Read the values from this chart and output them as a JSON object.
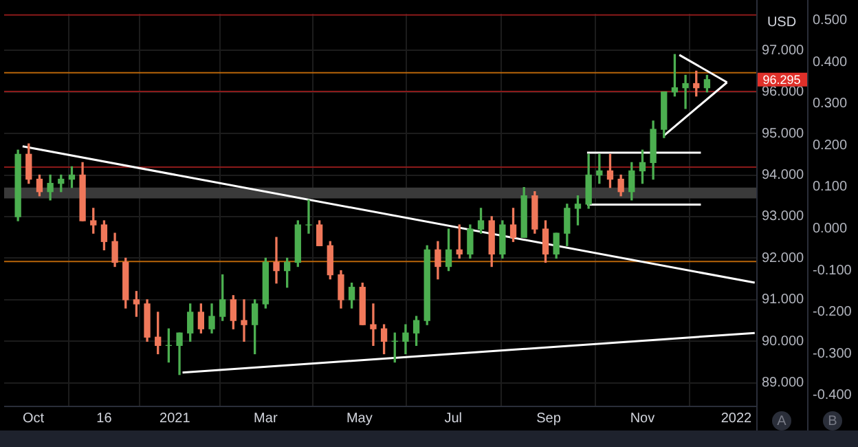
{
  "chart_data": {
    "type": "candlestick",
    "ylabel": "USD",
    "x": [
      "2020-09-21",
      "2020-09-28",
      "2020-10-05",
      "2020-10-12",
      "2020-10-19",
      "2020-10-26",
      "2020-11-02",
      "2020-11-09",
      "2020-11-16",
      "2020-11-23",
      "2020-11-30",
      "2020-12-07",
      "2020-12-14",
      "2020-12-21",
      "2020-12-28",
      "2021-01-04",
      "2021-01-11",
      "2021-01-18",
      "2021-01-25",
      "2021-02-01",
      "2021-02-08",
      "2021-02-15",
      "2021-02-22",
      "2021-03-01",
      "2021-03-08",
      "2021-03-15",
      "2021-03-22",
      "2021-03-29",
      "2021-04-05",
      "2021-04-12",
      "2021-04-19",
      "2021-04-26",
      "2021-05-03",
      "2021-05-10",
      "2021-05-17",
      "2021-05-24",
      "2021-05-31",
      "2021-06-07",
      "2021-06-14",
      "2021-06-21",
      "2021-06-28",
      "2021-07-05",
      "2021-07-12",
      "2021-07-19",
      "2021-07-26",
      "2021-08-02",
      "2021-08-09",
      "2021-08-16",
      "2021-08-23",
      "2021-08-30",
      "2021-09-06",
      "2021-09-13",
      "2021-09-20",
      "2021-09-27",
      "2021-10-04",
      "2021-10-11",
      "2021-10-18",
      "2021-10-25",
      "2021-11-01",
      "2021-11-08",
      "2021-11-15",
      "2021-11-22",
      "2021-11-29",
      "2021-12-06",
      "2021-12-13"
    ],
    "ohlc": [
      [
        93.0,
        94.6,
        92.9,
        94.5
      ],
      [
        94.5,
        94.75,
        93.8,
        93.9
      ],
      [
        93.9,
        94.0,
        93.5,
        93.6
      ],
      [
        93.6,
        94.0,
        93.4,
        93.8
      ],
      [
        93.8,
        94.0,
        93.6,
        93.9
      ],
      [
        93.9,
        94.2,
        93.7,
        94.0
      ],
      [
        94.0,
        94.3,
        92.9,
        92.9
      ],
      [
        92.9,
        93.2,
        92.6,
        92.8
      ],
      [
        92.8,
        92.9,
        92.2,
        92.4
      ],
      [
        92.4,
        92.6,
        91.8,
        91.9
      ],
      [
        91.9,
        92.0,
        90.8,
        91.0
      ],
      [
        91.0,
        91.2,
        90.6,
        90.9
      ],
      [
        90.9,
        91.0,
        90.0,
        90.1
      ],
      [
        90.1,
        90.7,
        89.7,
        89.9
      ],
      [
        89.9,
        90.3,
        89.5,
        89.9
      ],
      [
        89.9,
        90.2,
        89.2,
        90.2
      ],
      [
        90.2,
        90.9,
        90.0,
        90.7
      ],
      [
        90.7,
        90.9,
        90.2,
        90.3
      ],
      [
        90.3,
        90.9,
        90.2,
        90.6
      ],
      [
        90.6,
        91.6,
        90.5,
        91.0
      ],
      [
        91.0,
        91.1,
        90.3,
        90.5
      ],
      [
        90.5,
        91.0,
        90.0,
        90.4
      ],
      [
        90.4,
        91.0,
        89.7,
        90.9
      ],
      [
        90.9,
        92.0,
        90.8,
        91.9
      ],
      [
        91.9,
        92.5,
        91.4,
        91.7
      ],
      [
        91.7,
        92.0,
        91.3,
        91.9
      ],
      [
        91.9,
        92.9,
        91.8,
        92.8
      ],
      [
        92.8,
        93.4,
        92.6,
        92.8
      ],
      [
        92.8,
        92.9,
        92.3,
        92.3
      ],
      [
        92.3,
        92.4,
        91.5,
        91.6
      ],
      [
        91.6,
        91.7,
        90.8,
        91.0
      ],
      [
        91.0,
        91.4,
        90.8,
        91.3
      ],
      [
        91.3,
        91.4,
        90.4,
        90.4
      ],
      [
        90.4,
        90.9,
        89.9,
        90.3
      ],
      [
        90.3,
        90.4,
        89.7,
        90.0
      ],
      [
        90.0,
        90.2,
        89.5,
        90.0
      ],
      [
        90.0,
        90.4,
        89.7,
        90.2
      ],
      [
        90.2,
        90.6,
        89.9,
        90.5
      ],
      [
        90.5,
        92.3,
        90.4,
        92.2
      ],
      [
        92.2,
        92.4,
        91.5,
        91.8
      ],
      [
        91.8,
        92.7,
        91.7,
        92.2
      ],
      [
        92.2,
        92.8,
        92.0,
        92.1
      ],
      [
        92.1,
        92.8,
        92.0,
        92.7
      ],
      [
        92.7,
        93.2,
        92.6,
        92.9
      ],
      [
        92.9,
        93.0,
        91.8,
        92.1
      ],
      [
        92.1,
        92.9,
        92.0,
        92.8
      ],
      [
        92.8,
        93.2,
        92.4,
        92.5
      ],
      [
        92.5,
        93.7,
        92.5,
        93.5
      ],
      [
        93.5,
        93.6,
        92.6,
        92.7
      ],
      [
        92.7,
        92.9,
        91.9,
        92.1
      ],
      [
        92.1,
        92.6,
        92.0,
        92.6
      ],
      [
        92.6,
        93.3,
        92.3,
        93.2
      ],
      [
        93.2,
        93.5,
        92.8,
        93.3
      ],
      [
        93.3,
        94.5,
        93.2,
        94.0
      ],
      [
        94.0,
        94.5,
        93.8,
        94.1
      ],
      [
        94.1,
        94.5,
        93.7,
        93.9
      ],
      [
        93.9,
        94.0,
        93.5,
        93.6
      ],
      [
        93.6,
        94.3,
        93.4,
        94.1
      ],
      [
        94.1,
        94.6,
        93.8,
        94.3
      ],
      [
        94.3,
        95.3,
        93.9,
        95.1
      ],
      [
        95.1,
        96.0,
        94.9,
        96.0
      ],
      [
        96.0,
        96.9,
        95.9,
        96.1
      ],
      [
        96.1,
        96.4,
        95.6,
        96.2
      ],
      [
        96.2,
        96.5,
        95.9,
        96.1
      ],
      [
        96.1,
        96.4,
        96.0,
        96.295
      ]
    ],
    "series": [
      {
        "type": "line",
        "color": "#ffffff",
        "x": [
          "2020-09-24",
          "2022-01-13"
        ],
        "values": [
          94.69,
          91.41
        ]
      },
      {
        "type": "line",
        "color": "#ffffff",
        "x": [
          "2021-01-06",
          "2022-01-13"
        ],
        "values": [
          89.25,
          90.2
        ]
      },
      {
        "type": "line",
        "color": "#ffffff",
        "x": [
          "2021-09-26",
          "2021-12-09"
        ],
        "values": [
          94.54,
          94.54
        ]
      },
      {
        "type": "line",
        "color": "#ffffff",
        "x": [
          "2021-09-26",
          "2021-12-09"
        ],
        "values": [
          93.29,
          93.29
        ]
      },
      {
        "type": "line",
        "color": "#ffffff",
        "x": [
          "2021-11-25",
          "2021-12-26"
        ],
        "values": [
          96.89,
          96.23
        ]
      },
      {
        "type": "line",
        "color": "#ffffff",
        "x": [
          "2021-11-15",
          "2021-12-26"
        ],
        "values": [
          94.95,
          96.23
        ]
      }
    ],
    "ref_lines": [
      {
        "axis": "y",
        "value": 97.85,
        "color": "#8b1a1a"
      },
      {
        "axis": "y",
        "value": 96.46,
        "color": "#b8650a"
      },
      {
        "axis": "y",
        "value": 96.01,
        "color": "#8b1a1a"
      },
      {
        "axis": "y",
        "value": 94.19,
        "color": "#8b1a1a"
      },
      {
        "axis": "y",
        "value": 91.92,
        "color": "#b8650a"
      }
    ],
    "bands": [
      {
        "axis": "y",
        "from": 93.44,
        "to": 93.7,
        "color": "#3a3a3a"
      }
    ],
    "annotations": [
      "96.295",
      "A",
      "B"
    ],
    "xlim": [
      "2020-09-12",
      "2022-01-14"
    ],
    "xticks": [
      {
        "value": "2020-10-01",
        "label": "Oct"
      },
      {
        "value": "2020-11-16",
        "label": "16"
      },
      {
        "value": "2021-01-01",
        "label": "2021"
      },
      {
        "value": "2021-03-01",
        "label": "Mar"
      },
      {
        "value": "2021-05-01",
        "label": "May"
      },
      {
        "value": "2021-07-01",
        "label": "Jul"
      },
      {
        "value": "2021-09-01",
        "label": "Sep"
      },
      {
        "value": "2021-11-01",
        "label": "Nov"
      },
      {
        "value": "2022-01-01",
        "label": "2022"
      }
    ],
    "ylim": [
      88.45,
      97.88
    ],
    "yticks": [
      {
        "value": 89,
        "label": "89.000"
      },
      {
        "value": 90,
        "label": "90.000"
      },
      {
        "value": 91,
        "label": "91.000"
      },
      {
        "value": 92,
        "label": "92.000"
      },
      {
        "value": 93,
        "label": "93.000"
      },
      {
        "value": 94,
        "label": "94.000"
      },
      {
        "value": 95,
        "label": "95.000"
      },
      {
        "value": 96,
        "label": "96.000"
      },
      {
        "value": 97,
        "label": "97.000"
      }
    ],
    "y2lim": [
      -0.425,
      0.516
    ],
    "y2ticks": [
      {
        "value": -0.4,
        "label": "-0.400"
      },
      {
        "value": -0.3,
        "label": "-0.300"
      },
      {
        "value": -0.2,
        "label": "-0.200"
      },
      {
        "value": -0.1,
        "label": "-0.100"
      },
      {
        "value": 0,
        "label": "0.000"
      },
      {
        "value": 0.1,
        "label": "0.100"
      },
      {
        "value": 0.2,
        "label": "0.200"
      },
      {
        "value": 0.3,
        "label": "0.300"
      },
      {
        "value": 0.4,
        "label": "0.400"
      },
      {
        "value": 0.5,
        "label": "0.500"
      }
    ],
    "grid": true,
    "marker": "none",
    "line_style": "solid"
  }
}
